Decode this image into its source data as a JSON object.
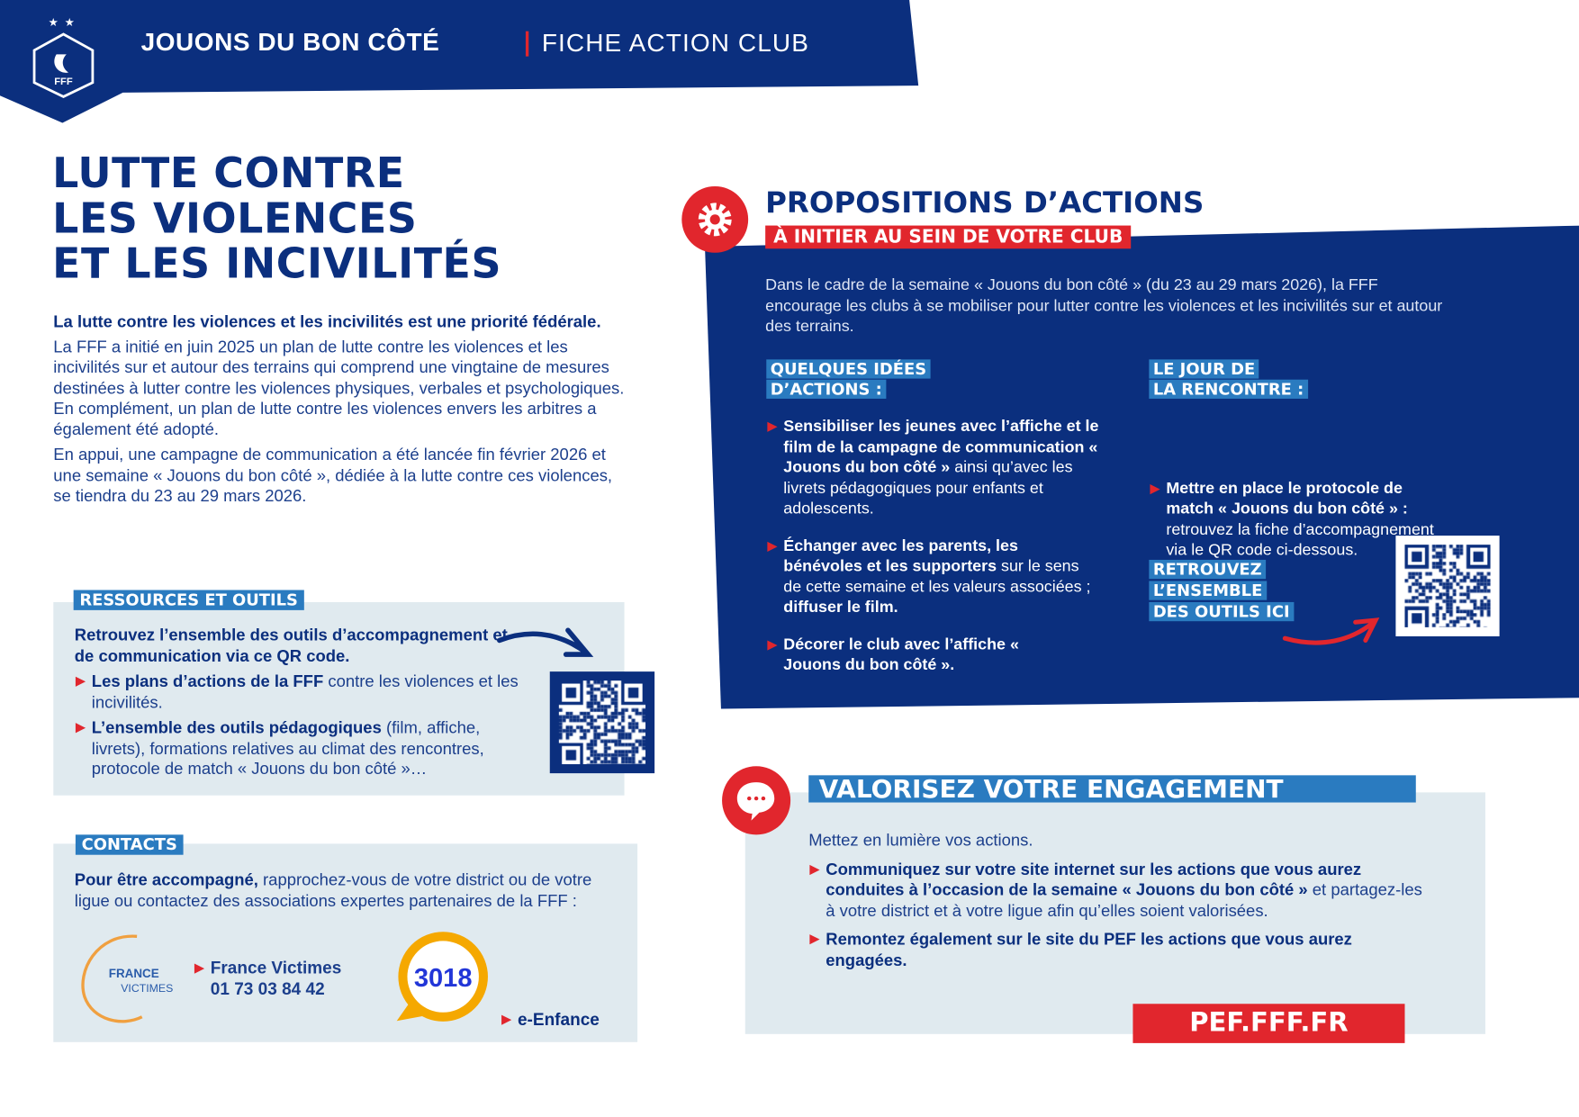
{
  "header": {
    "title": "JOUONS DU BON CÔTÉ",
    "subtitle": "FICHE ACTION CLUB",
    "logo_text": "FFF"
  },
  "colors": {
    "navy": "#0b2f7e",
    "blue": "#2a7bc0",
    "red": "#e1262d",
    "panel": "#e0eaef",
    "orange": "#f5a800"
  },
  "title": [
    "LUTTE CONTRE",
    "LES VIOLENCES",
    "ET LES INCIVILITÉS"
  ],
  "intro": {
    "lead": "La lutte contre les violences et les incivilités est une priorité fédérale.",
    "p1": "La FFF a initié en juin 2025 un plan de lutte contre les violences et les incivilités sur et autour des terrains qui comprend une vingtaine de mesures destinées à lutter contre les violences physiques, verbales et psychologiques. En complément, un plan de lutte contre les violences envers les arbitres a également été adopté.",
    "p2": "En appui, une campagne de communication a été lancée fin février 2026 et une semaine « Jouons du bon côté », dédiée à la lutte contre ces violences, se tiendra du 23 au 29 mars 2026."
  },
  "resources": {
    "label": "RESSOURCES ET OUTILS",
    "lead": "Retrouvez l’ensemble des outils d’accompagnement et de communication via ce QR code.",
    "items": [
      {
        "bold": "Les plans d’actions de la FFF",
        "text": " contre les violences et les incivilités."
      },
      {
        "bold": "L’ensemble des outils pédagogiques",
        "text": " (film, affiche, livrets), formations relatives au climat des rencontres, protocole de match « Jouons du bon côté »…"
      }
    ]
  },
  "contacts": {
    "label": "CONTACTS",
    "lead_bold": "Pour être accompagné,",
    "lead": " rapprochez-vous de votre district ou de votre ligue ou contactez des associations expertes partenaires de la FFF :",
    "france_victimes": {
      "logo_line1": "FRANCE",
      "logo_line2": "VICTIMES",
      "name": "France Victimes",
      "phone": "01 73 03 84 42"
    },
    "enfance": {
      "logo": "3018",
      "name": "e-Enfance"
    }
  },
  "actions": {
    "heading": "PROPOSITIONS D’ACTIONS",
    "subheading": "À INITIER AU SEIN DE VOTRE CLUB",
    "intro": "Dans le cadre de la semaine « Jouons du bon côté » (du 23 au 29 mars 2026), la FFF encourage les clubs à se mobiliser pour lutter contre les violences et les incivilités sur et autour des terrains.",
    "ideas": {
      "label_l1": "QUELQUES IDÉES",
      "label_l2": "D’ACTIONS :",
      "items": [
        {
          "bold": "Sensibiliser les jeunes avec l’affiche et le film de la campagne de communication « Jouons du bon côté »",
          "text": " ainsi qu’avec les livrets pédagogiques pour enfants et adolescents.",
          "bold2": ""
        },
        {
          "bold": "Échanger avec les parents, les bénévoles et les supporters",
          "text": " sur le sens de cette semaine et les valeurs associées ; ",
          "bold2": "diffuser le film."
        },
        {
          "bold": "Décorer le club avec l’affiche « Jouons du bon côté ».",
          "text": "",
          "bold2": ""
        }
      ]
    },
    "matchday": {
      "label_l1": "LE JOUR DE",
      "label_l2": "LA RENCONTRE :",
      "item_bold": "Mettre en place le protocole de match « Jouons du bon côté » :",
      "item_text": " retrouvez la fiche d’accompagnement via le QR code ci-dessous."
    },
    "tools": {
      "l1": "RETROUVEZ",
      "l2": "L’ENSEMBLE",
      "l3": "DES OUTILS ICI"
    }
  },
  "engagement": {
    "label": "VALORISEZ VOTRE ENGAGEMENT",
    "intro": "Mettez en lumière vos actions.",
    "items": [
      {
        "bold": "Communiquez sur votre site internet sur les actions que vous aurez conduites à l’occasion de la semaine « Jouons du bon côté »",
        "text": " et partagez-les à votre district et à votre ligue afin qu’elles soient valorisées."
      },
      {
        "bold": "Remontez également sur le site du PEF les actions que vous aurez engagées.",
        "text": ""
      }
    ],
    "button": "PEF.FFF.FR"
  }
}
